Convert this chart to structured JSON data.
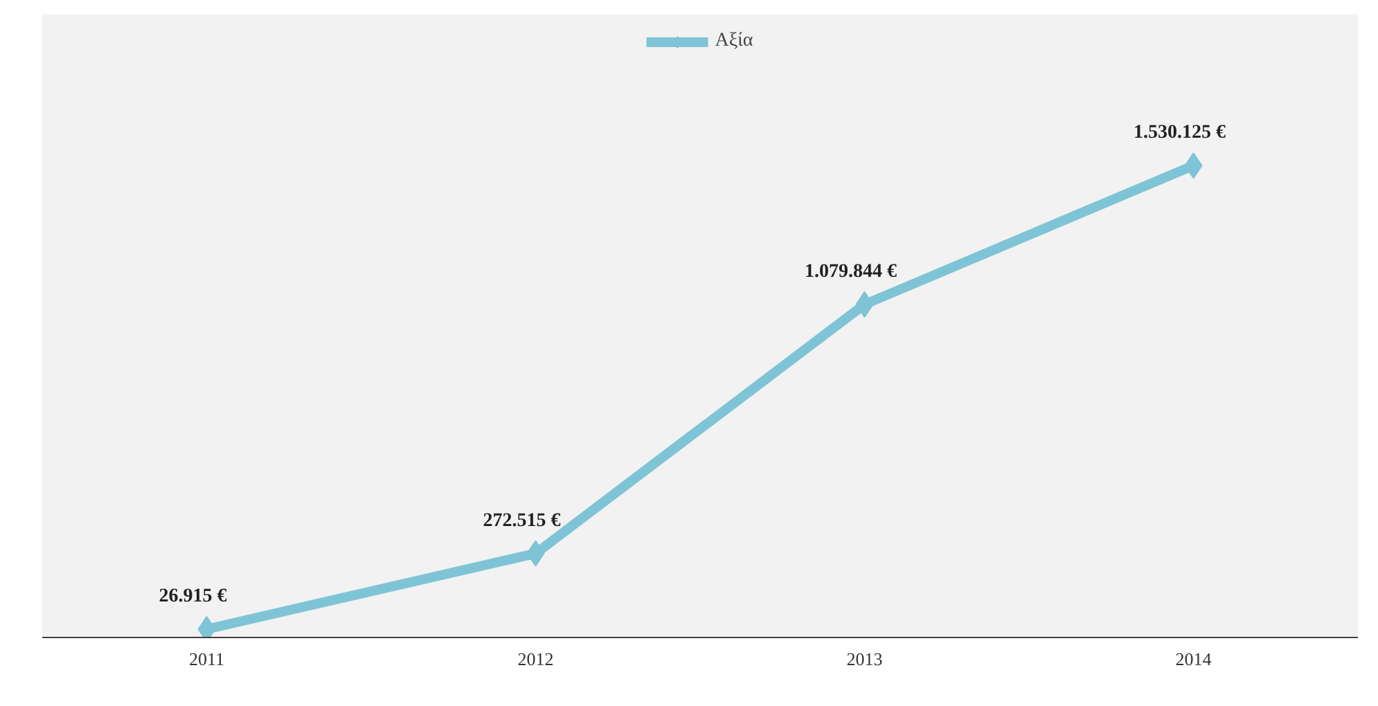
{
  "chart_data": {
    "type": "line",
    "categories": [
      "2011",
      "2012",
      "2013",
      "2014"
    ],
    "series": [
      {
        "name": "Αξία",
        "color": "#7fc4d6",
        "values": [
          26915,
          272515,
          1079844,
          1530125
        ],
        "value_labels": [
          "26.915 €",
          "272.515 €",
          "1.079.844 €",
          "1.530.125 €"
        ]
      }
    ],
    "marker": "diamond",
    "legend": "top",
    "grid": false,
    "tick_labels": "x"
  }
}
